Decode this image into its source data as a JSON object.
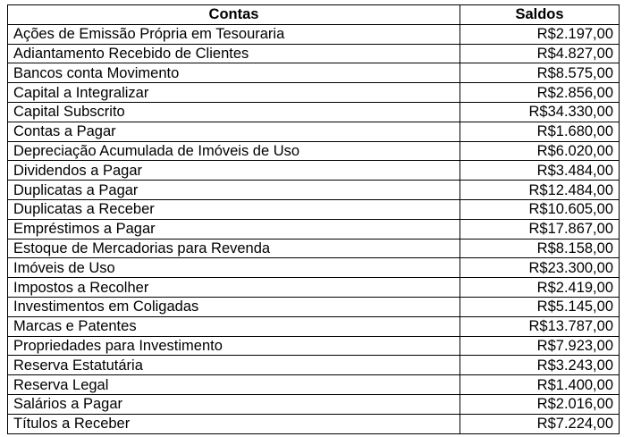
{
  "table": {
    "headers": [
      "Contas",
      "Saldos"
    ],
    "rows": [
      [
        "Ações de Emissão Própria em Tesouraria",
        "R$2.197,00"
      ],
      [
        "Adiantamento Recebido de Clientes",
        "R$4.827,00"
      ],
      [
        "Bancos conta Movimento",
        "R$8.575,00"
      ],
      [
        "Capital a Integralizar",
        "R$2.856,00"
      ],
      [
        "Capital Subscrito",
        "R$34.330,00"
      ],
      [
        "Contas a Pagar",
        "R$1.680,00"
      ],
      [
        "Depreciação Acumulada de Imóveis de Uso",
        "R$6.020,00"
      ],
      [
        "Dividendos a Pagar",
        "R$3.484,00"
      ],
      [
        "Duplicatas a Pagar",
        "R$12.484,00"
      ],
      [
        "Duplicatas a Receber",
        "R$10.605,00"
      ],
      [
        "Empréstimos a Pagar",
        "R$17.867,00"
      ],
      [
        "Estoque de Mercadorias para Revenda",
        "R$8.158,00"
      ],
      [
        "Imóveis de Uso",
        "R$23.300,00"
      ],
      [
        "Impostos a Recolher",
        "R$2.419,00"
      ],
      [
        "Investimentos em Coligadas",
        "R$5.145,00"
      ],
      [
        "Marcas e Patentes",
        "R$13.787,00"
      ],
      [
        "Propriedades para Investimento",
        "R$7.923,00"
      ],
      [
        "Reserva Estatutária",
        "R$3.243,00"
      ],
      [
        "Reserva Legal",
        "R$1.400,00"
      ],
      [
        "Salários a Pagar",
        "R$2.016,00"
      ],
      [
        "Títulos a Receber",
        "R$7.224,00"
      ]
    ]
  }
}
